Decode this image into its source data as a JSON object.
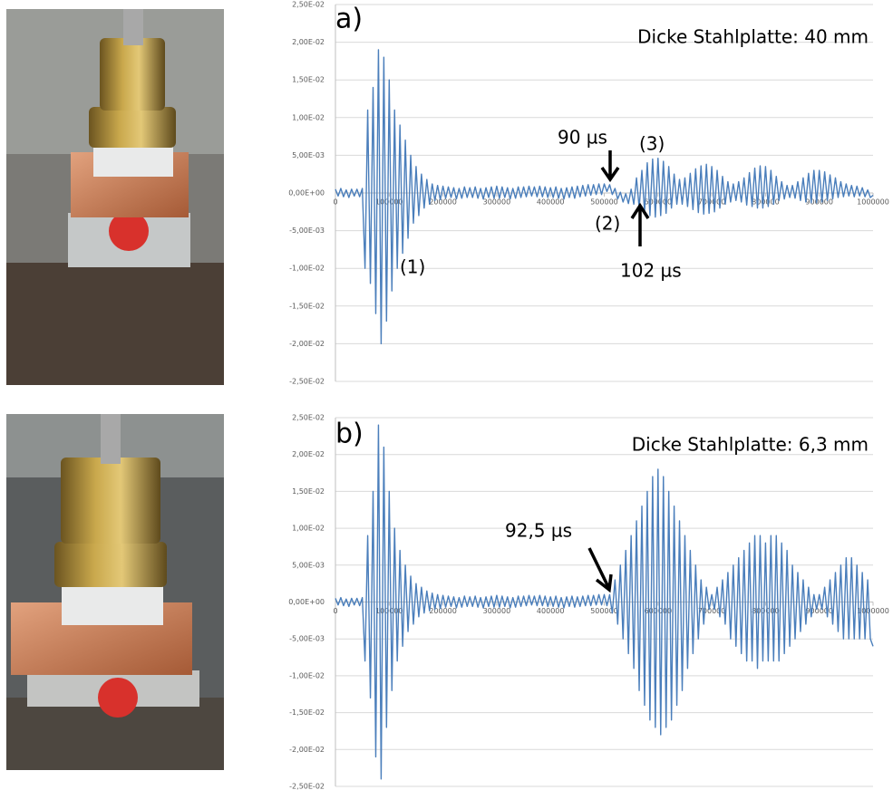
{
  "chart_data": [
    {
      "type": "line",
      "label": "a)",
      "annotations": [
        "Dicke Stahlplatte: 40 mm",
        "90 µs",
        "(3)",
        "(2)",
        "102 µs",
        "(1)"
      ],
      "color": "#4a7ebb",
      "grid": true,
      "xlim": [
        0,
        1000000
      ],
      "xticks": [
        0,
        100000,
        200000,
        300000,
        400000,
        500000,
        600000,
        700000,
        800000,
        900000,
        1000000
      ],
      "ylim": [
        -0.025,
        0.025
      ],
      "yticks": [
        {
          "value": 0.025,
          "label": "2,50E-02"
        },
        {
          "value": 0.02,
          "label": "2,00E-02"
        },
        {
          "value": 0.015,
          "label": "1,50E-02"
        },
        {
          "value": 0.01,
          "label": "1,00E-02"
        },
        {
          "value": 0.005,
          "label": "5,00E-03"
        },
        {
          "value": 0,
          "label": "0,00E+00"
        },
        {
          "value": -0.005,
          "label": "-5,00E-03"
        },
        {
          "value": -0.01,
          "label": "-1,00E-02"
        },
        {
          "value": -0.015,
          "label": "-1,50E-02"
        },
        {
          "value": -0.02,
          "label": "-2,00E-02"
        },
        {
          "value": -0.025,
          "label": "-2,50E-02"
        }
      ],
      "x": [
        0,
        5000,
        10000,
        15000,
        20000,
        25000,
        30000,
        35000,
        40000,
        45000,
        50000,
        55000,
        60000,
        65000,
        70000,
        75000,
        80000,
        85000,
        90000,
        95000,
        100000,
        105000,
        110000,
        115000,
        120000,
        125000,
        130000,
        135000,
        140000,
        145000,
        150000,
        155000,
        160000,
        165000,
        170000,
        175000,
        180000,
        185000,
        190000,
        195000,
        200000,
        205000,
        210000,
        215000,
        220000,
        225000,
        230000,
        235000,
        240000,
        245000,
        250000,
        255000,
        260000,
        265000,
        270000,
        275000,
        280000,
        285000,
        290000,
        295000,
        300000,
        305000,
        310000,
        315000,
        320000,
        325000,
        330000,
        335000,
        340000,
        345000,
        350000,
        355000,
        360000,
        365000,
        370000,
        375000,
        380000,
        385000,
        390000,
        395000,
        400000,
        405000,
        410000,
        415000,
        420000,
        425000,
        430000,
        435000,
        440000,
        445000,
        450000,
        455000,
        460000,
        465000,
        470000,
        475000,
        480000,
        485000,
        490000,
        495000,
        500000,
        505000,
        510000,
        515000,
        520000,
        525000,
        530000,
        535000,
        540000,
        545000,
        550000,
        555000,
        560000,
        565000,
        570000,
        575000,
        580000,
        585000,
        590000,
        595000,
        600000,
        605000,
        610000,
        615000,
        620000,
        625000,
        630000,
        635000,
        640000,
        645000,
        650000,
        655000,
        660000,
        665000,
        670000,
        675000,
        680000,
        685000,
        690000,
        695000,
        700000,
        705000,
        710000,
        715000,
        720000,
        725000,
        730000,
        735000,
        740000,
        745000,
        750000,
        755000,
        760000,
        765000,
        770000,
        775000,
        780000,
        785000,
        790000,
        795000,
        800000,
        805000,
        810000,
        815000,
        820000,
        825000,
        830000,
        835000,
        840000,
        845000,
        850000,
        855000,
        860000,
        865000,
        870000,
        875000,
        880000,
        885000,
        890000,
        895000,
        900000,
        905000,
        910000,
        915000,
        920000,
        925000,
        930000,
        935000,
        940000,
        945000,
        950000,
        955000,
        960000,
        965000,
        970000,
        975000,
        980000,
        985000,
        990000,
        995000,
        1000000
      ],
      "values": [
        0.0005,
        -0.0004,
        0.0006,
        -0.0005,
        0.0004,
        -0.0006,
        0.0005,
        -0.0004,
        0.0005,
        -0.0005,
        0.0006,
        -0.01,
        0.011,
        -0.012,
        0.014,
        -0.016,
        0.019,
        -0.02,
        0.018,
        -0.017,
        0.015,
        -0.013,
        0.011,
        -0.01,
        0.009,
        -0.008,
        0.007,
        -0.006,
        0.005,
        -0.004,
        0.0035,
        -0.003,
        0.0025,
        -0.002,
        0.0018,
        -0.0015,
        0.0012,
        -0.001,
        0.001,
        -0.0009,
        0.0009,
        -0.0007,
        0.0008,
        -0.0006,
        0.0007,
        -0.0008,
        0.0006,
        -0.0007,
        0.0008,
        -0.0006,
        0.0007,
        -0.0006,
        0.0008,
        -0.0007,
        0.0006,
        -0.0008,
        0.0007,
        -0.0006,
        0.0008,
        -0.0007,
        0.0009,
        -0.0007,
        0.0008,
        -0.0006,
        0.0007,
        -0.0008,
        0.0006,
        -0.0007,
        0.0008,
        -0.0006,
        0.0008,
        -0.0005,
        0.0009,
        -0.0004,
        0.0008,
        -0.0005,
        0.0009,
        -0.0005,
        0.0008,
        -0.0006,
        0.0007,
        -0.0006,
        0.0008,
        -0.0007,
        0.0006,
        -0.0008,
        0.0007,
        -0.0006,
        0.0008,
        -0.0007,
        0.0009,
        -0.0005,
        0.001,
        -0.0004,
        0.0011,
        -0.0003,
        0.0011,
        -0.0002,
        0.0012,
        -0.0002,
        0.0012,
        0.0002,
        0.0011,
        -0.0002,
        0.0006,
        -0.0008,
        0.0001,
        -0.0012,
        -0.0001,
        -0.0014,
        0.0005,
        -0.0015,
        0.002,
        -0.002,
        0.003,
        -0.0025,
        0.004,
        -0.003,
        0.0045,
        -0.0032,
        0.0046,
        -0.003,
        0.0042,
        -0.0027,
        0.0035,
        -0.002,
        0.0025,
        -0.0015,
        0.0018,
        -0.0015,
        0.002,
        -0.0018,
        0.0026,
        -0.0022,
        0.0032,
        -0.0026,
        0.0036,
        -0.0028,
        0.0038,
        -0.0027,
        0.0035,
        -0.0025,
        0.003,
        -0.002,
        0.0022,
        -0.0015,
        0.0015,
        -0.0012,
        0.0012,
        -0.001,
        0.0015,
        -0.0012,
        0.002,
        -0.0016,
        0.0027,
        -0.0018,
        0.0033,
        -0.002,
        0.0036,
        -0.002,
        0.0035,
        -0.0018,
        0.003,
        -0.0015,
        0.0022,
        -0.001,
        0.0015,
        -0.0008,
        0.001,
        -0.0006,
        0.001,
        -0.0007,
        0.0015,
        -0.001,
        0.002,
        -0.0012,
        0.0026,
        -0.0013,
        0.003,
        -0.0013,
        0.003,
        -0.0012,
        0.0028,
        -0.001,
        0.0024,
        -0.0008,
        0.002,
        -0.0006,
        0.0015,
        -0.0005,
        0.0012,
        -0.0004,
        0.001,
        -0.0005,
        0.0009,
        -0.0004,
        0.0007,
        -0.0005,
        0.0004,
        -0.0006,
        -0.0003
      ]
    },
    {
      "type": "line",
      "label": "b)",
      "annotations": [
        "Dicke Stahlplatte: 6,3 mm",
        "92,5 µs"
      ],
      "color": "#4a7ebb",
      "grid": true,
      "xlim": [
        0,
        1000000
      ],
      "xticks": [
        0,
        100000,
        200000,
        300000,
        400000,
        500000,
        600000,
        700000,
        800000,
        900000,
        1000000
      ],
      "ylim": [
        -0.025,
        0.025
      ],
      "yticks": [
        {
          "value": 0.025,
          "label": "2,50E-02"
        },
        {
          "value": 0.02,
          "label": "2,00E-02"
        },
        {
          "value": 0.015,
          "label": "1,50E-02"
        },
        {
          "value": 0.01,
          "label": "1,00E-02"
        },
        {
          "value": 0.005,
          "label": "5,00E-03"
        },
        {
          "value": 0,
          "label": "0,00E+00"
        },
        {
          "value": -0.005,
          "label": "-5,00E-03"
        },
        {
          "value": -0.01,
          "label": "-1,00E-02"
        },
        {
          "value": -0.015,
          "label": "-1,50E-02"
        },
        {
          "value": -0.02,
          "label": "-2,00E-02"
        },
        {
          "value": -0.025,
          "label": "-2,50E-02"
        }
      ],
      "x": [
        0,
        5000,
        10000,
        15000,
        20000,
        25000,
        30000,
        35000,
        40000,
        45000,
        50000,
        55000,
        60000,
        65000,
        70000,
        75000,
        80000,
        85000,
        90000,
        95000,
        100000,
        105000,
        110000,
        115000,
        120000,
        125000,
        130000,
        135000,
        140000,
        145000,
        150000,
        155000,
        160000,
        165000,
        170000,
        175000,
        180000,
        185000,
        190000,
        195000,
        200000,
        205000,
        210000,
        215000,
        220000,
        225000,
        230000,
        235000,
        240000,
        245000,
        250000,
        255000,
        260000,
        265000,
        270000,
        275000,
        280000,
        285000,
        290000,
        295000,
        300000,
        305000,
        310000,
        315000,
        320000,
        325000,
        330000,
        335000,
        340000,
        345000,
        350000,
        355000,
        360000,
        365000,
        370000,
        375000,
        380000,
        385000,
        390000,
        395000,
        400000,
        405000,
        410000,
        415000,
        420000,
        425000,
        430000,
        435000,
        440000,
        445000,
        450000,
        455000,
        460000,
        465000,
        470000,
        475000,
        480000,
        485000,
        490000,
        495000,
        500000,
        505000,
        510000,
        515000,
        520000,
        525000,
        530000,
        535000,
        540000,
        545000,
        550000,
        555000,
        560000,
        565000,
        570000,
        575000,
        580000,
        585000,
        590000,
        595000,
        600000,
        605000,
        610000,
        615000,
        620000,
        625000,
        630000,
        635000,
        640000,
        645000,
        650000,
        655000,
        660000,
        665000,
        670000,
        675000,
        680000,
        685000,
        690000,
        695000,
        700000,
        705000,
        710000,
        715000,
        720000,
        725000,
        730000,
        735000,
        740000,
        745000,
        750000,
        755000,
        760000,
        765000,
        770000,
        775000,
        780000,
        785000,
        790000,
        795000,
        800000,
        805000,
        810000,
        815000,
        820000,
        825000,
        830000,
        835000,
        840000,
        845000,
        850000,
        855000,
        860000,
        865000,
        870000,
        875000,
        880000,
        885000,
        890000,
        895000,
        900000,
        905000,
        910000,
        915000,
        920000,
        925000,
        930000,
        935000,
        940000,
        945000,
        950000,
        955000,
        960000,
        965000,
        970000,
        975000,
        980000,
        985000,
        990000,
        995000,
        1000000
      ],
      "values": [
        0.0005,
        -0.0004,
        0.0006,
        -0.0005,
        0.0004,
        -0.0006,
        0.0005,
        -0.0004,
        0.0005,
        -0.0005,
        0.0006,
        -0.008,
        0.009,
        -0.013,
        0.015,
        -0.021,
        0.024,
        -0.024,
        0.021,
        -0.017,
        0.015,
        -0.012,
        0.01,
        -0.008,
        0.007,
        -0.006,
        0.005,
        -0.004,
        0.0035,
        -0.003,
        0.0025,
        -0.002,
        0.002,
        -0.0015,
        0.0015,
        -0.0012,
        0.0012,
        -0.001,
        0.001,
        -0.0009,
        0.0009,
        -0.0007,
        0.0008,
        -0.0006,
        0.0007,
        -0.0008,
        0.0006,
        -0.0007,
        0.0008,
        -0.0006,
        0.0007,
        -0.0006,
        0.0008,
        -0.0007,
        0.0006,
        -0.0008,
        0.0007,
        -0.0006,
        0.0008,
        -0.0007,
        0.0009,
        -0.0007,
        0.0008,
        -0.0006,
        0.0007,
        -0.0008,
        0.0006,
        -0.0007,
        0.0008,
        -0.0006,
        0.0008,
        -0.0005,
        0.0009,
        -0.0004,
        0.0008,
        -0.0005,
        0.0009,
        -0.0005,
        0.0008,
        -0.0006,
        0.0007,
        -0.0006,
        0.0008,
        -0.0007,
        0.0006,
        -0.0008,
        0.0007,
        -0.0006,
        0.0008,
        -0.0007,
        0.0007,
        -0.0006,
        0.0008,
        -0.0005,
        0.0009,
        -0.0005,
        0.0009,
        -0.0004,
        0.001,
        -0.0004,
        0.001,
        -0.0005,
        0.001,
        -0.0015,
        0.003,
        -0.003,
        0.005,
        -0.005,
        0.007,
        -0.007,
        0.009,
        -0.009,
        0.011,
        -0.012,
        0.013,
        -0.014,
        0.015,
        -0.016,
        0.017,
        -0.017,
        0.018,
        -0.018,
        0.017,
        -0.017,
        0.015,
        -0.016,
        0.013,
        -0.014,
        0.011,
        -0.012,
        0.009,
        -0.009,
        0.007,
        -0.007,
        0.005,
        -0.005,
        0.003,
        -0.003,
        0.002,
        -0.001,
        0.001,
        -0.001,
        0.002,
        -0.002,
        0.003,
        -0.003,
        0.004,
        -0.005,
        0.005,
        -0.006,
        0.006,
        -0.007,
        0.007,
        -0.008,
        0.008,
        -0.008,
        0.009,
        -0.009,
        0.009,
        -0.008,
        0.008,
        -0.008,
        0.009,
        -0.008,
        0.009,
        -0.008,
        0.008,
        -0.007,
        0.007,
        -0.006,
        0.005,
        -0.005,
        0.004,
        -0.004,
        0.003,
        -0.003,
        0.002,
        -0.002,
        0.001,
        -0.001,
        0.001,
        -0.001,
        0.002,
        -0.002,
        0.003,
        -0.003,
        0.004,
        -0.004,
        0.005,
        -0.005,
        0.006,
        -0.005,
        0.006,
        -0.005,
        0.005,
        -0.005,
        0.004,
        -0.005,
        0.003,
        -0.005,
        -0.006
      ]
    }
  ]
}
